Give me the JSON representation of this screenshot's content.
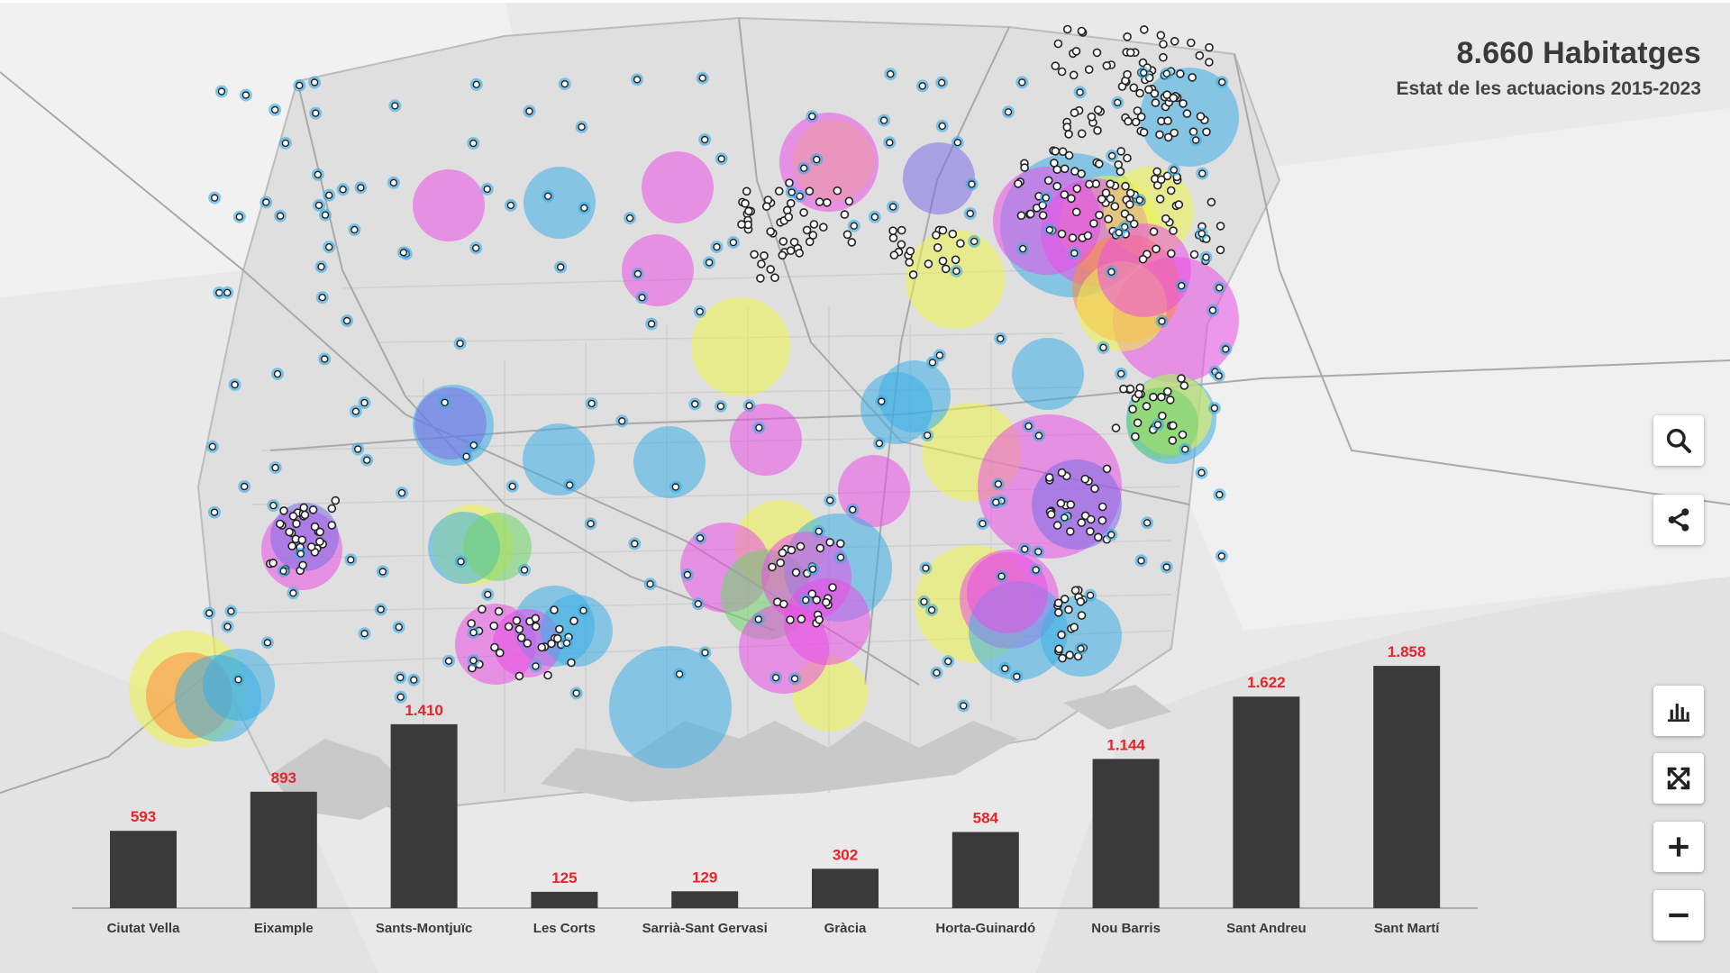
{
  "title": "8.660 Habitatges",
  "subtitle": "Estat de les actuacions 2015-2023",
  "colors": {
    "bar": "#3a3a3a",
    "bar_label": "#e8232a",
    "blue": "#3aaee6",
    "magenta": "#ea4fe6",
    "yellow": "#eef24a",
    "purple": "#7b6ee6",
    "orange": "#ff8a3a",
    "green": "#6fd36a"
  },
  "controls": [
    {
      "name": "search-button",
      "icon": "search-icon"
    },
    {
      "name": "share-button",
      "icon": "share-icon"
    },
    {
      "name": "chart-toggle-button",
      "icon": "bar-chart-icon"
    },
    {
      "name": "fullscreen-button",
      "icon": "expand-icon"
    },
    {
      "name": "zoom-in-button",
      "icon": "plus-icon"
    },
    {
      "name": "zoom-out-button",
      "icon": "minus-icon"
    }
  ],
  "chart_data": {
    "type": "bar",
    "categories": [
      "Ciutat Vella",
      "Eixample",
      "Sants-Montjuïc",
      "Les Corts",
      "Sarrià-Sant Gervasi",
      "Gràcia",
      "Horta-Guinardó",
      "Nou Barris",
      "Sant Andreu",
      "Sant Martí"
    ],
    "values": [
      593,
      893,
      1410,
      125,
      129,
      302,
      584,
      1144,
      1622,
      1858
    ],
    "value_labels": [
      "593",
      "893",
      "1.410",
      "125",
      "129",
      "302",
      "584",
      "1.144",
      "1.622",
      "1.858"
    ],
    "ylim": [
      0,
      1900
    ]
  }
}
